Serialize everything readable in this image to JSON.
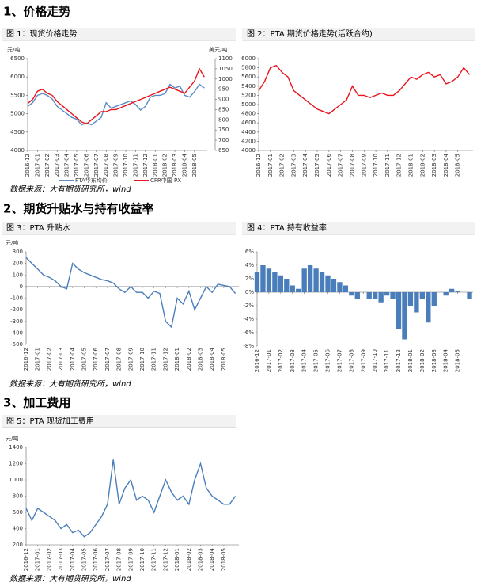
{
  "headings": [
    "1、价格走势",
    "2、期货升贴水与持有收益率",
    "3、加工费用"
  ],
  "sources": [
    "数据来源：大有期货研究所，wind",
    "数据来源：大有期货研究所，wind",
    "数据来源：大有期货研究所，wind"
  ],
  "chart_data": [
    {
      "type": "line",
      "title": "图 1：现货价格走势",
      "y_label": "元/吨",
      "y2_label": "美元/吨",
      "x": [
        0,
        0.5,
        1,
        1.5,
        2,
        2.5,
        3,
        3.5,
        4,
        4.5,
        5,
        5.5,
        6,
        6.5,
        7,
        7.5,
        8,
        8.5,
        9,
        9.5,
        10,
        10.5,
        11,
        11.5,
        12,
        12.5,
        13,
        13.5,
        14,
        14.5,
        15,
        15.5,
        16,
        16.5,
        17,
        17.5,
        18
      ],
      "xlim": [
        0,
        18.3
      ],
      "xticks": [
        {
          "value": 0,
          "label": "2016-12"
        },
        {
          "value": 1,
          "label": "2017-01"
        },
        {
          "value": 2,
          "label": "2017-02"
        },
        {
          "value": 3,
          "label": "2017-03"
        },
        {
          "value": 4,
          "label": "2017-04"
        },
        {
          "value": 5,
          "label": "2017-05"
        },
        {
          "value": 6,
          "label": "2017-06"
        },
        {
          "value": 7,
          "label": "2017-07"
        },
        {
          "value": 8,
          "label": "2017-08"
        },
        {
          "value": 9,
          "label": "2017-09"
        },
        {
          "value": 10,
          "label": "2017-10"
        },
        {
          "value": 11,
          "label": "2017-11"
        },
        {
          "value": 12,
          "label": "2017-12"
        },
        {
          "value": 13,
          "label": "2018-01"
        },
        {
          "value": 14,
          "label": "2018-02"
        },
        {
          "value": 15,
          "label": "2018-03"
        },
        {
          "value": 16,
          "label": "2018-04"
        },
        {
          "value": 17,
          "label": "2018-05"
        }
      ],
      "ylim": [
        4000,
        6500
      ],
      "yticks": [
        4000,
        4500,
        5000,
        5500,
        6000,
        6500
      ],
      "y2lim": [
        650,
        1100
      ],
      "y2ticks": [
        650,
        700,
        750,
        800,
        850,
        900,
        950,
        1000,
        1050,
        1100
      ],
      "legend": "bottom",
      "series": [
        {
          "name": "PTA华东均价",
          "color": "#5b8ac6",
          "values": [
            5200,
            5300,
            5500,
            5550,
            5500,
            5400,
            5200,
            5100,
            5000,
            4900,
            4850,
            4700,
            4750,
            4700,
            4800,
            4900,
            5300,
            5150,
            5200,
            5250,
            5300,
            5350,
            5250,
            5100,
            5200,
            5450,
            5500,
            5500,
            5550,
            5800,
            5700,
            5750,
            5500,
            5450,
            5600,
            5800,
            5700
          ]
        },
        {
          "name": "CFR中国 PX",
          "color": "#e8141b",
          "axis": "y2",
          "values": [
            880,
            900,
            940,
            950,
            930,
            920,
            890,
            870,
            850,
            830,
            810,
            790,
            780,
            800,
            820,
            840,
            840,
            850,
            850,
            860,
            870,
            880,
            890,
            900,
            910,
            920,
            930,
            940,
            950,
            960,
            950,
            940,
            930,
            960,
            990,
            1050,
            1010
          ]
        }
      ]
    },
    {
      "type": "line",
      "title": "图 2：PTA 期货价格走势(活跃合约)",
      "x": [
        0,
        0.5,
        1,
        1.5,
        2,
        2.5,
        3,
        3.5,
        4,
        4.5,
        5,
        5.5,
        6,
        6.5,
        7,
        7.5,
        8,
        8.5,
        9,
        9.5,
        10,
        10.5,
        11,
        11.5,
        12,
        12.5,
        13,
        13.5,
        14,
        14.5,
        15,
        15.5,
        16,
        16.5,
        17,
        17.5,
        18
      ],
      "xlim": [
        0,
        18.3
      ],
      "xticks": [
        {
          "value": 0,
          "label": "2016-12"
        },
        {
          "value": 1,
          "label": "2017-01"
        },
        {
          "value": 2,
          "label": "2017-02"
        },
        {
          "value": 3,
          "label": "2017-03"
        },
        {
          "value": 4,
          "label": "2017-04"
        },
        {
          "value": 5,
          "label": "2017-05"
        },
        {
          "value": 6,
          "label": "2017-06"
        },
        {
          "value": 7,
          "label": "2017-07"
        },
        {
          "value": 8,
          "label": "2017-08"
        },
        {
          "value": 9,
          "label": "2017-09"
        },
        {
          "value": 10,
          "label": "2017-10"
        },
        {
          "value": 11,
          "label": "2017-11"
        },
        {
          "value": 12,
          "label": "2017-12"
        },
        {
          "value": 13,
          "label": "2018-01"
        },
        {
          "value": 14,
          "label": "2018-02"
        },
        {
          "value": 15,
          "label": "2018-03"
        },
        {
          "value": 16,
          "label": "2018-04"
        },
        {
          "value": 17,
          "label": "2018-05"
        }
      ],
      "ylim": [
        4000,
        6000
      ],
      "yticks": [
        4000,
        4200,
        4400,
        4600,
        4800,
        5000,
        5200,
        5400,
        5600,
        5800,
        6000
      ],
      "series": [
        {
          "color": "#e8141b",
          "values": [
            5300,
            5500,
            5800,
            5850,
            5700,
            5600,
            5300,
            5200,
            5100,
            5000,
            4900,
            4850,
            4800,
            4900,
            5000,
            5100,
            5400,
            5200,
            5200,
            5150,
            5200,
            5250,
            5200,
            5200,
            5300,
            5450,
            5600,
            5550,
            5650,
            5700,
            5600,
            5650,
            5450,
            5500,
            5600,
            5800,
            5650
          ]
        }
      ]
    },
    {
      "type": "line",
      "title": "图 3：PTA 升贴水",
      "y_label": "元/吨",
      "x": [
        0,
        0.5,
        1,
        1.5,
        2,
        2.5,
        3,
        3.5,
        4,
        4.5,
        5,
        5.5,
        6,
        6.5,
        7,
        7.5,
        8,
        8.5,
        9,
        9.5,
        10,
        10.5,
        11,
        11.5,
        12,
        12.5,
        13,
        13.5,
        14,
        14.5,
        15,
        15.5,
        16,
        16.5,
        17,
        17.5,
        18
      ],
      "xlim": [
        0,
        18.3
      ],
      "xticks": [
        {
          "value": 0,
          "label": "2016-12"
        },
        {
          "value": 1,
          "label": "2017-01"
        },
        {
          "value": 2,
          "label": "2017-02"
        },
        {
          "value": 3,
          "label": "2017-03"
        },
        {
          "value": 4,
          "label": "2017-04"
        },
        {
          "value": 5,
          "label": "2017-05"
        },
        {
          "value": 6,
          "label": "2017-06"
        },
        {
          "value": 7,
          "label": "2017-07"
        },
        {
          "value": 8,
          "label": "2017-08"
        },
        {
          "value": 9,
          "label": "2017-09"
        },
        {
          "value": 10,
          "label": "2017-10"
        },
        {
          "value": 11,
          "label": "2017-11"
        },
        {
          "value": 12,
          "label": "2017-12"
        },
        {
          "value": 13,
          "label": "2018-01"
        },
        {
          "value": 14,
          "label": "2018-02"
        },
        {
          "value": 15,
          "label": "2018-03"
        },
        {
          "value": 16,
          "label": "2018-04"
        },
        {
          "value": 17,
          "label": "2018-05"
        }
      ],
      "ylim": [
        -500,
        300
      ],
      "yticks": [
        -500,
        -400,
        -300,
        -200,
        -100,
        0,
        100,
        200,
        300
      ],
      "series": [
        {
          "color": "#4a7ebb",
          "values": [
            250,
            200,
            150,
            100,
            80,
            50,
            0,
            -20,
            200,
            150,
            120,
            100,
            80,
            60,
            50,
            30,
            -20,
            -50,
            0,
            -50,
            -50,
            -100,
            -40,
            -60,
            -300,
            -350,
            -100,
            -150,
            -40,
            -200,
            -100,
            0,
            -50,
            20,
            10,
            0,
            -60
          ]
        }
      ]
    },
    {
      "type": "bar",
      "title": "图 4：PTA 持有收益率",
      "x": [
        0,
        0.5,
        1,
        1.5,
        2,
        2.5,
        3,
        3.5,
        4,
        4.5,
        5,
        5.5,
        6,
        6.5,
        7,
        7.5,
        8,
        8.5,
        9,
        9.5,
        10,
        10.5,
        11,
        11.5,
        12,
        12.5,
        13,
        13.5,
        14,
        14.5,
        15,
        15.5,
        16,
        16.5,
        17,
        17.5,
        18
      ],
      "xlim": [
        0,
        18.3
      ],
      "xticks": [
        {
          "value": 0,
          "label": "2016-12"
        },
        {
          "value": 1,
          "label": "2017-01"
        },
        {
          "value": 2,
          "label": "2017-02"
        },
        {
          "value": 3,
          "label": "2017-03"
        },
        {
          "value": 4,
          "label": "2017-04"
        },
        {
          "value": 5,
          "label": "2017-05"
        },
        {
          "value": 6,
          "label": "2017-06"
        },
        {
          "value": 7,
          "label": "2017-07"
        },
        {
          "value": 8,
          "label": "2017-08"
        },
        {
          "value": 9,
          "label": "2017-09"
        },
        {
          "value": 10,
          "label": "2017-10"
        },
        {
          "value": 11,
          "label": "2017-11"
        },
        {
          "value": 12,
          "label": "2017-12"
        },
        {
          "value": 13,
          "label": "2018-01"
        },
        {
          "value": 14,
          "label": "2018-02"
        },
        {
          "value": 15,
          "label": "2018-03"
        },
        {
          "value": 16,
          "label": "2018-04"
        },
        {
          "value": 17,
          "label": "2018-05"
        }
      ],
      "ylim": [
        -8,
        6
      ],
      "yticks": [
        {
          "value": -8,
          "label": "-8%"
        },
        {
          "value": -6,
          "label": "-6%"
        },
        {
          "value": -4,
          "label": "-4%"
        },
        {
          "value": -2,
          "label": "-2%"
        },
        {
          "value": 0,
          "label": "0%"
        },
        {
          "value": 2,
          "label": "2%"
        },
        {
          "value": 4,
          "label": "4%"
        },
        {
          "value": 6,
          "label": "6%"
        }
      ],
      "series": [
        {
          "color": "#4a7ebb",
          "values": [
            3,
            4,
            3.5,
            3,
            2.5,
            2,
            1,
            0.5,
            3.5,
            4,
            3.5,
            3,
            2.5,
            2,
            1.5,
            1,
            -0.5,
            -1,
            0,
            -1,
            -1,
            -1.5,
            -0.5,
            -1,
            -5.5,
            -7,
            -2,
            -3,
            -1,
            -4.5,
            -2,
            0,
            -0.5,
            0.5,
            0.2,
            0,
            -1
          ]
        }
      ]
    },
    {
      "type": "line",
      "title": "图 5：PTA 现货加工费用",
      "y_label": "元/吨",
      "x": [
        0,
        0.5,
        1,
        1.5,
        2,
        2.5,
        3,
        3.5,
        4,
        4.5,
        5,
        5.5,
        6,
        6.5,
        7,
        7.5,
        8,
        8.5,
        9,
        9.5,
        10,
        10.5,
        11,
        11.5,
        12,
        12.5,
        13,
        13.5,
        14,
        14.5,
        15,
        15.5,
        16,
        16.5,
        17,
        17.5,
        18
      ],
      "xlim": [
        0,
        18.3
      ],
      "xticks": [
        {
          "value": 0,
          "label": "2016-12"
        },
        {
          "value": 1,
          "label": "2017-01"
        },
        {
          "value": 2,
          "label": "2017-02"
        },
        {
          "value": 3,
          "label": "2017-03"
        },
        {
          "value": 4,
          "label": "2017-04"
        },
        {
          "value": 5,
          "label": "2017-05"
        },
        {
          "value": 6,
          "label": "2017-06"
        },
        {
          "value": 7,
          "label": "2017-07"
        },
        {
          "value": 8,
          "label": "2017-08"
        },
        {
          "value": 9,
          "label": "2017-09"
        },
        {
          "value": 10,
          "label": "2017-10"
        },
        {
          "value": 11,
          "label": "2017-11"
        },
        {
          "value": 12,
          "label": "2017-12"
        },
        {
          "value": 13,
          "label": "2018-01"
        },
        {
          "value": 14,
          "label": "2018-02"
        },
        {
          "value": 15,
          "label": "2018-03"
        },
        {
          "value": 16,
          "label": "2018-04"
        },
        {
          "value": 17,
          "label": "2018-05"
        }
      ],
      "ylim": [
        200,
        1400
      ],
      "yticks": [
        200,
        400,
        600,
        800,
        1000,
        1200,
        1400
      ],
      "series": [
        {
          "color": "#4a7ebb",
          "values": [
            650,
            500,
            650,
            600,
            550,
            500,
            400,
            450,
            350,
            380,
            300,
            350,
            450,
            550,
            700,
            1250,
            700,
            900,
            1000,
            750,
            800,
            750,
            600,
            800,
            1000,
            850,
            750,
            800,
            700,
            1000,
            1200,
            900,
            800,
            750,
            700,
            700,
            800
          ]
        }
      ]
    }
  ]
}
